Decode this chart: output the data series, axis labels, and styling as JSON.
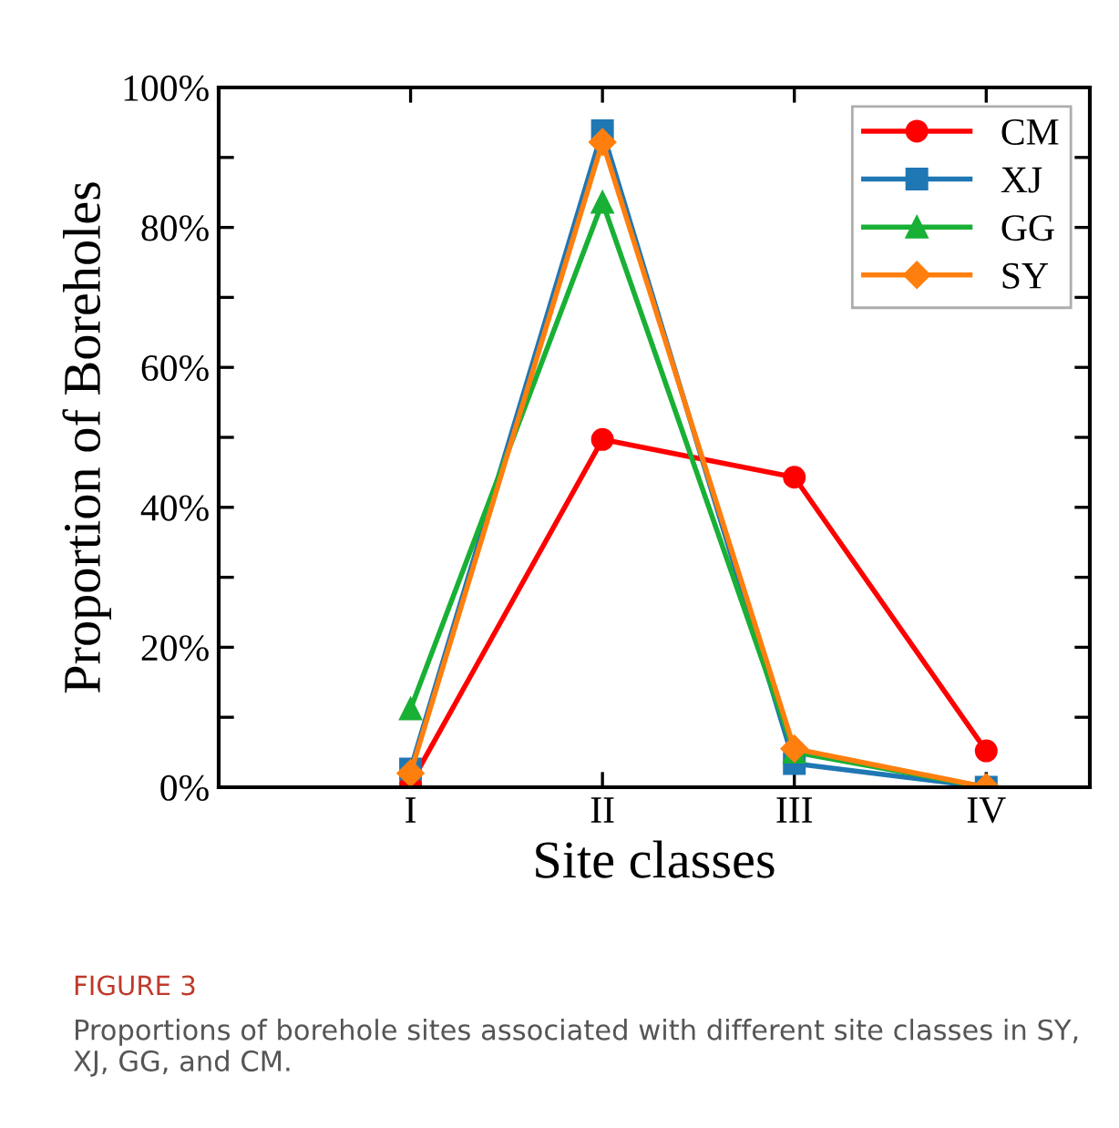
{
  "chart_data": {
    "type": "line",
    "xlabel": "Site classes",
    "ylabel": "Proportion of Boreholes",
    "categories": [
      "I",
      "II",
      "III",
      "IV"
    ],
    "series": [
      {
        "name": "CM",
        "color": "#ff0000",
        "marker": "circle",
        "values": [
          0.5,
          49.7,
          44.3,
          5.2
        ]
      },
      {
        "name": "XJ",
        "color": "#1f77b4",
        "marker": "square",
        "values": [
          2.6,
          93.8,
          3.4,
          0
        ]
      },
      {
        "name": "GG",
        "color": "#18b035",
        "marker": "triangle",
        "values": [
          11.2,
          83.6,
          5.0,
          0
        ]
      },
      {
        "name": "SY",
        "color": "#ff7f0e",
        "marker": "diamond",
        "values": [
          2.0,
          92.2,
          5.5,
          0
        ]
      }
    ],
    "ylim": [
      0,
      100
    ],
    "yticks": [
      {
        "value": 0,
        "label": "0%"
      },
      {
        "value": 10,
        "label": null
      },
      {
        "value": 20,
        "label": "20%"
      },
      {
        "value": 30,
        "label": null
      },
      {
        "value": 40,
        "label": "40%"
      },
      {
        "value": 50,
        "label": null
      },
      {
        "value": 60,
        "label": "60%"
      },
      {
        "value": 70,
        "label": null
      },
      {
        "value": 80,
        "label": "80%"
      },
      {
        "value": 90,
        "label": null
      },
      {
        "value": 100,
        "label": "100%"
      }
    ],
    "grid": false,
    "legend": "top right",
    "line_style": "solid",
    "annotations": [
      "FIGURE 3",
      "Proportions of borehole sites associated with different site classes in SY, XJ, GG, and CM."
    ]
  }
}
